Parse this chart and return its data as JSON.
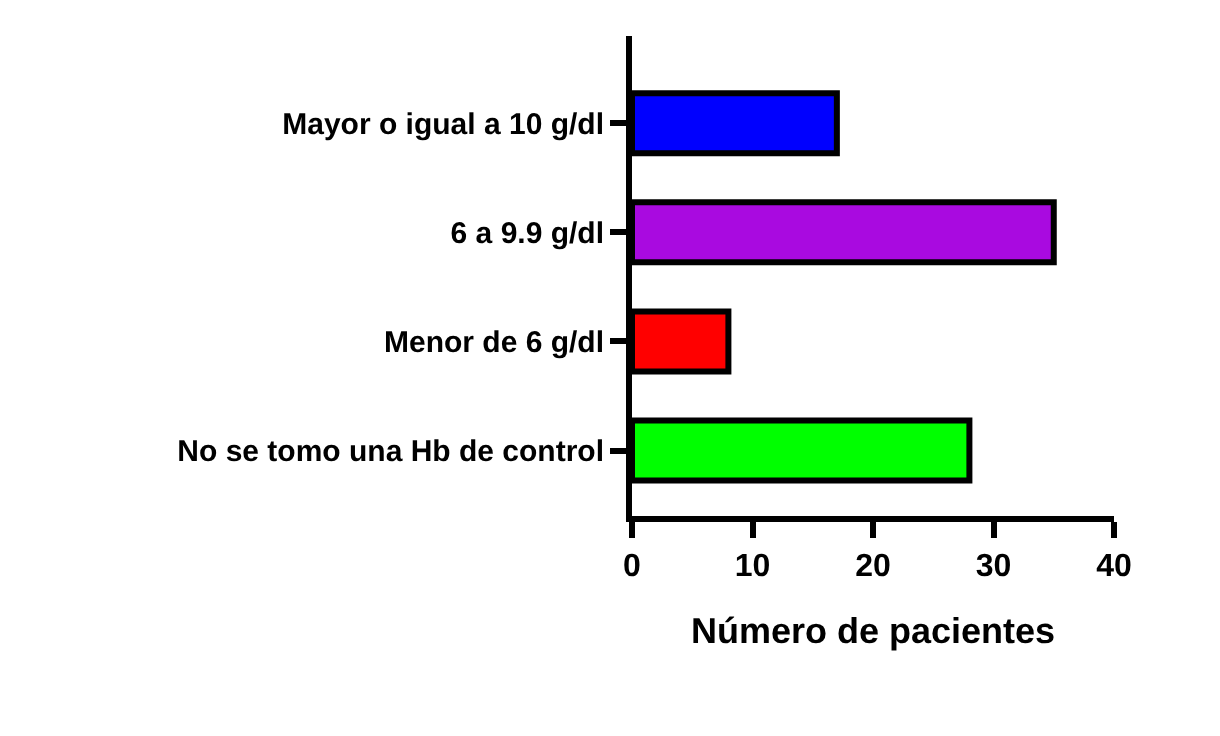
{
  "chart_data": {
    "type": "bar",
    "orientation": "horizontal",
    "xlabel": "Número de pacientes",
    "categories": [
      "Mayor o igual a 10 g/dl",
      "6 a 9.9 g/dl",
      "Menor de 6 g/dl",
      "No se tomo una Hb de control"
    ],
    "values": [
      17,
      35,
      8,
      28
    ],
    "colors": [
      "#0000ff",
      "#a90ae0",
      "#ff0000",
      "#00ff00"
    ],
    "xlim": [
      0,
      40
    ],
    "xticks": [
      0,
      10,
      20,
      30,
      40
    ]
  }
}
